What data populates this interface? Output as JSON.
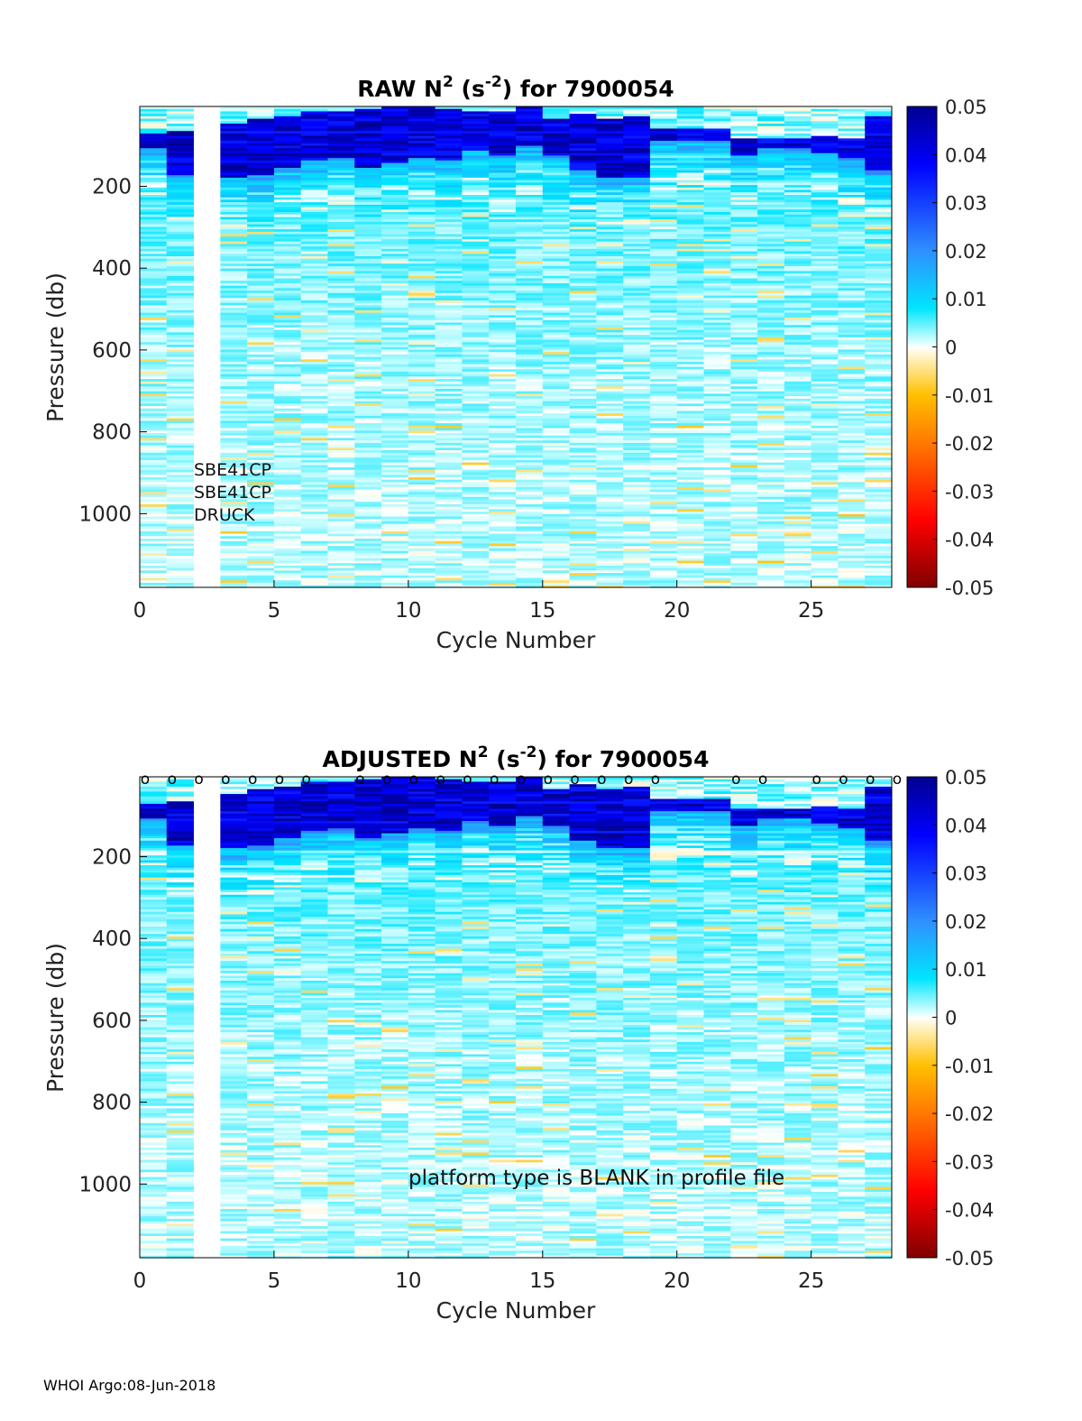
{
  "chart_data": [
    {
      "type": "heatmap",
      "title": {
        "main": "RAW N",
        "sup": "2",
        "unit_open": " (s",
        "unit_sup": "-2",
        "unit_close": ") for 7900054"
      },
      "xlabel": "Cycle Number",
      "ylabel": "Pressure (db)",
      "xlim": [
        0,
        28
      ],
      "ylim": [
        1180,
        5
      ],
      "xticks": [
        0,
        5,
        10,
        15,
        20,
        25
      ],
      "yticks": [
        200,
        400,
        600,
        800,
        1000
      ],
      "missing_cycles": [
        2
      ],
      "thermocline": [
        {
          "cycle": 0,
          "top": 70,
          "bottom": 105
        },
        {
          "cycle": 1,
          "top": 60,
          "bottom": 170
        },
        {
          "cycle": 3,
          "top": 45,
          "bottom": 175
        },
        {
          "cycle": 4,
          "top": 30,
          "bottom": 170
        },
        {
          "cycle": 5,
          "top": 25,
          "bottom": 150
        },
        {
          "cycle": 6,
          "top": 15,
          "bottom": 135
        },
        {
          "cycle": 7,
          "top": 15,
          "bottom": 130
        },
        {
          "cycle": 8,
          "top": 10,
          "bottom": 150
        },
        {
          "cycle": 9,
          "top": 5,
          "bottom": 140
        },
        {
          "cycle": 10,
          "top": 5,
          "bottom": 125
        },
        {
          "cycle": 11,
          "top": 10,
          "bottom": 135
        },
        {
          "cycle": 12,
          "top": 15,
          "bottom": 110
        },
        {
          "cycle": 13,
          "top": 15,
          "bottom": 120
        },
        {
          "cycle": 14,
          "top": 5,
          "bottom": 100
        },
        {
          "cycle": 15,
          "top": 35,
          "bottom": 120
        },
        {
          "cycle": 16,
          "top": 20,
          "bottom": 160
        },
        {
          "cycle": 17,
          "top": 30,
          "bottom": 175
        },
        {
          "cycle": 18,
          "top": 25,
          "bottom": 175
        },
        {
          "cycle": 19,
          "top": 55,
          "bottom": 85
        },
        {
          "cycle": 20,
          "top": 55,
          "bottom": 85
        },
        {
          "cycle": 21,
          "top": 55,
          "bottom": 85
        },
        {
          "cycle": 22,
          "top": 80,
          "bottom": 120
        },
        {
          "cycle": 23,
          "top": 80,
          "bottom": 105
        },
        {
          "cycle": 24,
          "top": 80,
          "bottom": 105
        },
        {
          "cycle": 25,
          "top": 75,
          "bottom": 115
        },
        {
          "cycle": 26,
          "top": 80,
          "bottom": 125
        },
        {
          "cycle": 27,
          "top": 25,
          "bottom": 160
        }
      ],
      "colorbar": {
        "range": [
          -0.05,
          0.05
        ],
        "tick_labels": [
          "0.05",
          "0.04",
          "0.03",
          "0.02",
          "0.01",
          "0",
          "-0.01",
          "-0.02",
          "-0.03",
          "-0.04",
          "-0.05"
        ]
      },
      "annotations": [
        "SBE41CP",
        "SBE41CP",
        "DRUCK"
      ]
    },
    {
      "type": "heatmap",
      "title": {
        "main": "ADJUSTED N",
        "sup": "2",
        "unit_open": " (s",
        "unit_sup": "-2",
        "unit_close": ") for 7900054"
      },
      "xlabel": "Cycle Number",
      "ylabel": "Pressure (db)",
      "xlim": [
        0,
        28
      ],
      "ylim": [
        1180,
        5
      ],
      "xticks": [
        0,
        5,
        10,
        15,
        20,
        25
      ],
      "yticks": [
        200,
        400,
        600,
        800,
        1000
      ],
      "missing_cycles": [
        2
      ],
      "qc_markers": {
        "symbol": "o",
        "cycles": [
          0,
          1,
          2,
          3,
          4,
          5,
          6,
          8,
          9,
          10,
          11,
          12,
          13,
          14,
          15,
          16,
          17,
          18,
          19,
          22,
          23,
          25,
          26,
          27,
          28
        ]
      },
      "colorbar": {
        "range": [
          -0.05,
          0.05
        ],
        "tick_labels": [
          "0.05",
          "0.04",
          "0.03",
          "0.02",
          "0.01",
          "0",
          "-0.01",
          "-0.02",
          "-0.03",
          "-0.04",
          "-0.05"
        ]
      },
      "annotations": [
        "platform type is BLANK in profile file"
      ]
    }
  ],
  "footer": "WHOI Argo:08-Jun-2018"
}
